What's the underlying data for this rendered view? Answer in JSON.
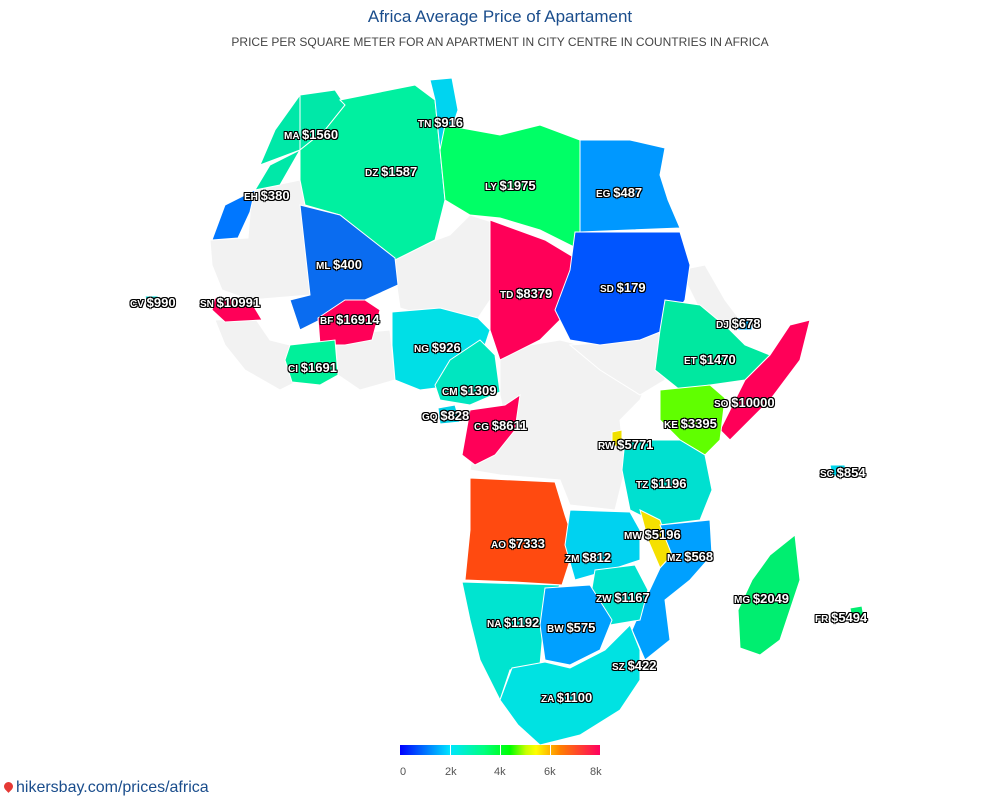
{
  "title": "Africa Average Price of Apartament",
  "subtitle": "Price per square meter for an apartment in city centre in countries in Africa",
  "source": "hikersbay.com/prices/africa",
  "colors": {
    "no_data": "#f2f2f2",
    "border": "#ffffff",
    "title": "#1a4d8c"
  },
  "legend": {
    "min": 0,
    "max": 8000,
    "ticks": [
      "0",
      "2k",
      "4k",
      "6k",
      "8k"
    ]
  },
  "countries": [
    {
      "code": "MA",
      "value": 1560,
      "label": "MA $1560",
      "color": "#00e8a8"
    },
    {
      "code": "DZ",
      "value": 1587,
      "label": "DZ $1587",
      "color": "#00f0a0"
    },
    {
      "code": "TN",
      "value": 916,
      "label": "TN $916",
      "color": "#00d4f0"
    },
    {
      "code": "LY",
      "value": 1975,
      "label": "LY $1975",
      "color": "#00ff66"
    },
    {
      "code": "EG",
      "value": 487,
      "label": "EG $487",
      "color": "#0098ff"
    },
    {
      "code": "EH",
      "value": 380,
      "label": "EH $380",
      "color": "#0077ff"
    },
    {
      "code": "ML",
      "value": 400,
      "label": "ML $400",
      "color": "#0a6cf0"
    },
    {
      "code": "SN",
      "value": 10991,
      "label": "SN $10991",
      "color": "#ff0058"
    },
    {
      "code": "CV",
      "value": 990,
      "label": "CV $990",
      "color": "#00dfd8"
    },
    {
      "code": "BF",
      "value": 16914,
      "label": "BF $16914",
      "color": "#ff0058"
    },
    {
      "code": "TD",
      "value": 8379,
      "label": "TD $8379",
      "color": "#ff0058"
    },
    {
      "code": "SD",
      "value": 179,
      "label": "SD $179",
      "color": "#0055ff"
    },
    {
      "code": "DJ",
      "value": 678,
      "label": "DJ $678",
      "color": "#00b0ff"
    },
    {
      "code": "NG",
      "value": 926,
      "label": "NG $926",
      "color": "#00dfe6"
    },
    {
      "code": "CI",
      "value": 1691,
      "label": "CI $1691",
      "color": "#00f09a"
    },
    {
      "code": "ET",
      "value": 1470,
      "label": "ET $1470",
      "color": "#00e8a0"
    },
    {
      "code": "CM",
      "value": 1309,
      "label": "CM $1309",
      "color": "#00e6c0"
    },
    {
      "code": "GQ",
      "value": 828,
      "label": "GQ $828",
      "color": "#00cfe6"
    },
    {
      "code": "CG",
      "value": 8611,
      "label": "CG $8611",
      "color": "#ff0058"
    },
    {
      "code": "SO",
      "value": 10000,
      "label": "SO $10000",
      "color": "#ff0058"
    },
    {
      "code": "KE",
      "value": 3395,
      "label": "KE $3395",
      "color": "#60ff00"
    },
    {
      "code": "RW",
      "value": 5771,
      "label": "RW $5771",
      "color": "#f0e000"
    },
    {
      "code": "SC",
      "value": 854,
      "label": "SC $854",
      "color": "#00d4ea"
    },
    {
      "code": "TZ",
      "value": 1196,
      "label": "TZ $1196",
      "color": "#00e0d0"
    },
    {
      "code": "AO",
      "value": 7333,
      "label": "AO $7333",
      "color": "#ff4a10"
    },
    {
      "code": "MW",
      "value": 5196,
      "label": "MW $5196",
      "color": "#f5e000"
    },
    {
      "code": "ZM",
      "value": 812,
      "label": "ZM $812",
      "color": "#00d2f0"
    },
    {
      "code": "MZ",
      "value": 568,
      "label": "MZ $568",
      "color": "#00a0ff"
    },
    {
      "code": "ZW",
      "value": 1167,
      "label": "ZW $1167",
      "color": "#00e2d0"
    },
    {
      "code": "MG",
      "value": 2049,
      "label": "MG $2049",
      "color": "#00ee70"
    },
    {
      "code": "NA",
      "value": 1192,
      "label": "NA $1192",
      "color": "#00e4d0"
    },
    {
      "code": "BW",
      "value": 575,
      "label": "BW $575",
      "color": "#00a0ff"
    },
    {
      "code": "FR",
      "value": 5494,
      "label": "FR $5494",
      "color": "#00ee70"
    },
    {
      "code": "SZ",
      "value": 422,
      "label": "SZ $422",
      "color": "#0090ff"
    },
    {
      "code": "ZA",
      "value": 1100,
      "label": "ZA $1100",
      "color": "#00e2e2"
    }
  ]
}
